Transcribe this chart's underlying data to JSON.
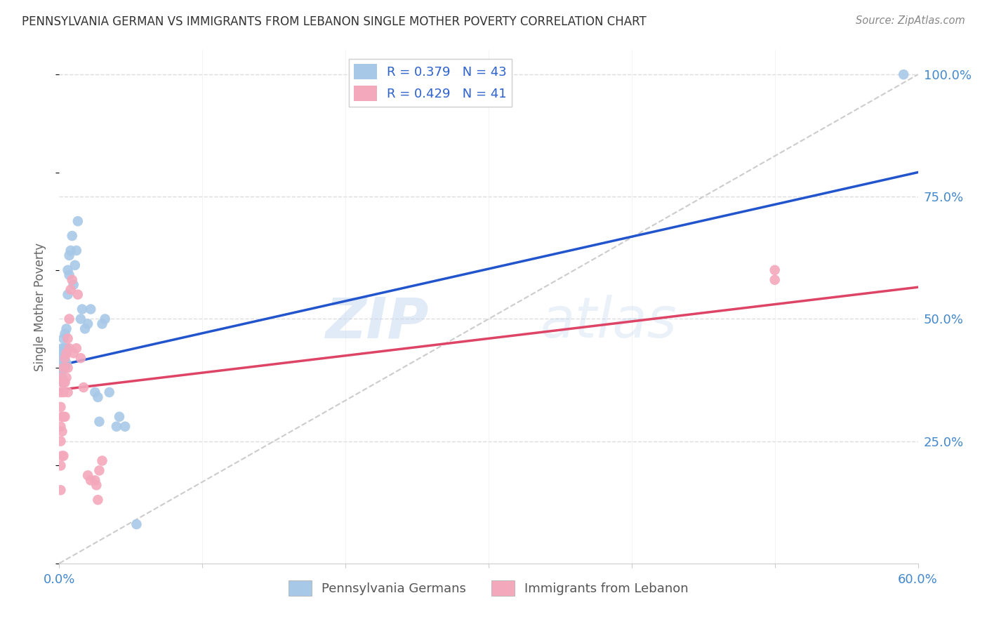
{
  "title": "PENNSYLVANIA GERMAN VS IMMIGRANTS FROM LEBANON SINGLE MOTHER POVERTY CORRELATION CHART",
  "source": "Source: ZipAtlas.com",
  "ylabel": "Single Mother Poverty",
  "legend_blue_r": "R = 0.379",
  "legend_blue_n": "N = 43",
  "legend_pink_r": "R = 0.429",
  "legend_pink_n": "N = 41",
  "blue_color": "#a8c8e8",
  "pink_color": "#f4a8bc",
  "blue_line_color": "#2255cc",
  "pink_line_color": "#dd4466",
  "ref_line_color": "#cccccc",
  "watermark_zip": "ZIP",
  "watermark_atlas": "atlas",
  "xlim": [
    0.0,
    0.6
  ],
  "ylim": [
    0.0,
    1.05
  ],
  "blue_x": [
    0.001,
    0.001,
    0.001,
    0.002,
    0.002,
    0.002,
    0.002,
    0.003,
    0.003,
    0.003,
    0.003,
    0.004,
    0.004,
    0.004,
    0.005,
    0.005,
    0.005,
    0.006,
    0.006,
    0.007,
    0.007,
    0.008,
    0.009,
    0.01,
    0.011,
    0.012,
    0.013,
    0.015,
    0.016,
    0.018,
    0.02,
    0.022,
    0.025,
    0.027,
    0.028,
    0.03,
    0.032,
    0.035,
    0.04,
    0.042,
    0.046,
    0.054,
    0.59
  ],
  "blue_y": [
    0.39,
    0.41,
    0.42,
    0.38,
    0.4,
    0.43,
    0.44,
    0.37,
    0.42,
    0.44,
    0.46,
    0.4,
    0.43,
    0.47,
    0.41,
    0.44,
    0.48,
    0.55,
    0.6,
    0.59,
    0.63,
    0.64,
    0.67,
    0.57,
    0.61,
    0.64,
    0.7,
    0.5,
    0.52,
    0.48,
    0.49,
    0.52,
    0.35,
    0.34,
    0.29,
    0.49,
    0.5,
    0.35,
    0.28,
    0.3,
    0.28,
    0.08,
    1.0
  ],
  "pink_x": [
    0.001,
    0.001,
    0.001,
    0.001,
    0.001,
    0.001,
    0.001,
    0.002,
    0.002,
    0.002,
    0.002,
    0.003,
    0.003,
    0.003,
    0.003,
    0.004,
    0.004,
    0.004,
    0.005,
    0.005,
    0.006,
    0.006,
    0.006,
    0.007,
    0.007,
    0.008,
    0.009,
    0.01,
    0.012,
    0.013,
    0.015,
    0.017,
    0.02,
    0.022,
    0.025,
    0.026,
    0.027,
    0.028,
    0.03,
    0.5,
    0.5
  ],
  "pink_y": [
    0.38,
    0.35,
    0.32,
    0.28,
    0.25,
    0.2,
    0.15,
    0.37,
    0.3,
    0.27,
    0.22,
    0.4,
    0.35,
    0.3,
    0.22,
    0.42,
    0.37,
    0.3,
    0.43,
    0.38,
    0.46,
    0.4,
    0.35,
    0.5,
    0.44,
    0.56,
    0.58,
    0.43,
    0.44,
    0.55,
    0.42,
    0.36,
    0.18,
    0.17,
    0.17,
    0.16,
    0.13,
    0.19,
    0.21,
    0.6,
    0.58
  ],
  "blue_line_x0": 0.0,
  "blue_line_y0": 0.405,
  "blue_line_x1": 0.6,
  "blue_line_y1": 0.8,
  "pink_line_x0": 0.0,
  "pink_line_y0": 0.355,
  "pink_line_x1": 0.6,
  "pink_line_y1": 0.565
}
